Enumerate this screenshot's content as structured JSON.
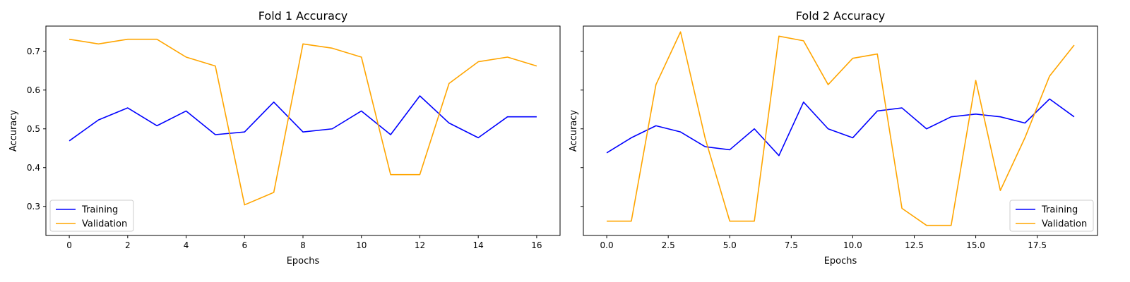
{
  "chart_data": [
    {
      "type": "line",
      "title": "Fold 1 Accuracy",
      "xlabel": "Epochs",
      "ylabel": "Accuracy",
      "xlim": [
        -0.8,
        16.8
      ],
      "ylim": [
        0.225,
        0.765
      ],
      "xticks": [
        0,
        2,
        4,
        6,
        8,
        10,
        12,
        14,
        16
      ],
      "xtick_labels": [
        "0",
        "2",
        "4",
        "6",
        "8",
        "10",
        "12",
        "14",
        "16"
      ],
      "yticks": [
        0.3,
        0.4,
        0.5,
        0.6,
        0.7
      ],
      "ytick_labels": [
        "0.3",
        "0.4",
        "0.5",
        "0.6",
        "0.7"
      ],
      "show_y_ticklabels": true,
      "legend_position": "lower-left",
      "x": [
        0,
        1,
        2,
        3,
        4,
        5,
        6,
        7,
        8,
        9,
        10,
        11,
        12,
        13,
        14,
        15,
        16
      ],
      "series": [
        {
          "name": "Training",
          "color": "#0000ff",
          "values": [
            0.469,
            0.523,
            0.554,
            0.508,
            0.546,
            0.485,
            0.492,
            0.569,
            0.492,
            0.5,
            0.546,
            0.485,
            0.585,
            0.515,
            0.477,
            0.531,
            0.531
          ]
        },
        {
          "name": "Validation",
          "color": "#ffa500",
          "values": [
            0.731,
            0.719,
            0.731,
            0.731,
            0.685,
            0.662,
            0.304,
            0.336,
            0.719,
            0.708,
            0.685,
            0.382,
            0.382,
            0.617,
            0.673,
            0.685,
            0.662
          ]
        }
      ]
    },
    {
      "type": "line",
      "title": "Fold 2 Accuracy",
      "xlabel": "Epochs",
      "ylabel": "Accuracy",
      "xlim": [
        -0.95,
        19.95
      ],
      "ylim": [
        0.225,
        0.765
      ],
      "xticks": [
        0,
        2.5,
        5,
        7.5,
        10,
        12.5,
        15,
        17.5
      ],
      "xtick_labels": [
        "0.0",
        "2.5",
        "5.0",
        "7.5",
        "10.0",
        "12.5",
        "15.0",
        "17.5"
      ],
      "yticks": [
        0.3,
        0.4,
        0.5,
        0.6,
        0.7
      ],
      "ytick_labels": [
        "0.3",
        "0.4",
        "0.5",
        "0.6",
        "0.7"
      ],
      "show_y_ticklabels": false,
      "legend_position": "lower-right",
      "x": [
        0,
        1,
        2,
        3,
        4,
        5,
        6,
        7,
        8,
        9,
        10,
        11,
        12,
        13,
        14,
        15,
        16,
        17,
        18,
        19
      ],
      "series": [
        {
          "name": "Training",
          "color": "#0000ff",
          "values": [
            0.438,
            0.477,
            0.508,
            0.492,
            0.454,
            0.446,
            0.5,
            0.431,
            0.569,
            0.5,
            0.477,
            0.546,
            0.554,
            0.5,
            0.531,
            0.538,
            0.531,
            0.515,
            0.577,
            0.531
          ]
        },
        {
          "name": "Validation",
          "color": "#ffa500",
          "values": [
            0.262,
            0.262,
            0.614,
            0.75,
            0.476,
            0.262,
            0.262,
            0.739,
            0.727,
            0.614,
            0.682,
            0.693,
            0.295,
            0.251,
            0.251,
            0.625,
            0.341,
            0.477,
            0.636,
            0.716
          ]
        }
      ]
    }
  ]
}
